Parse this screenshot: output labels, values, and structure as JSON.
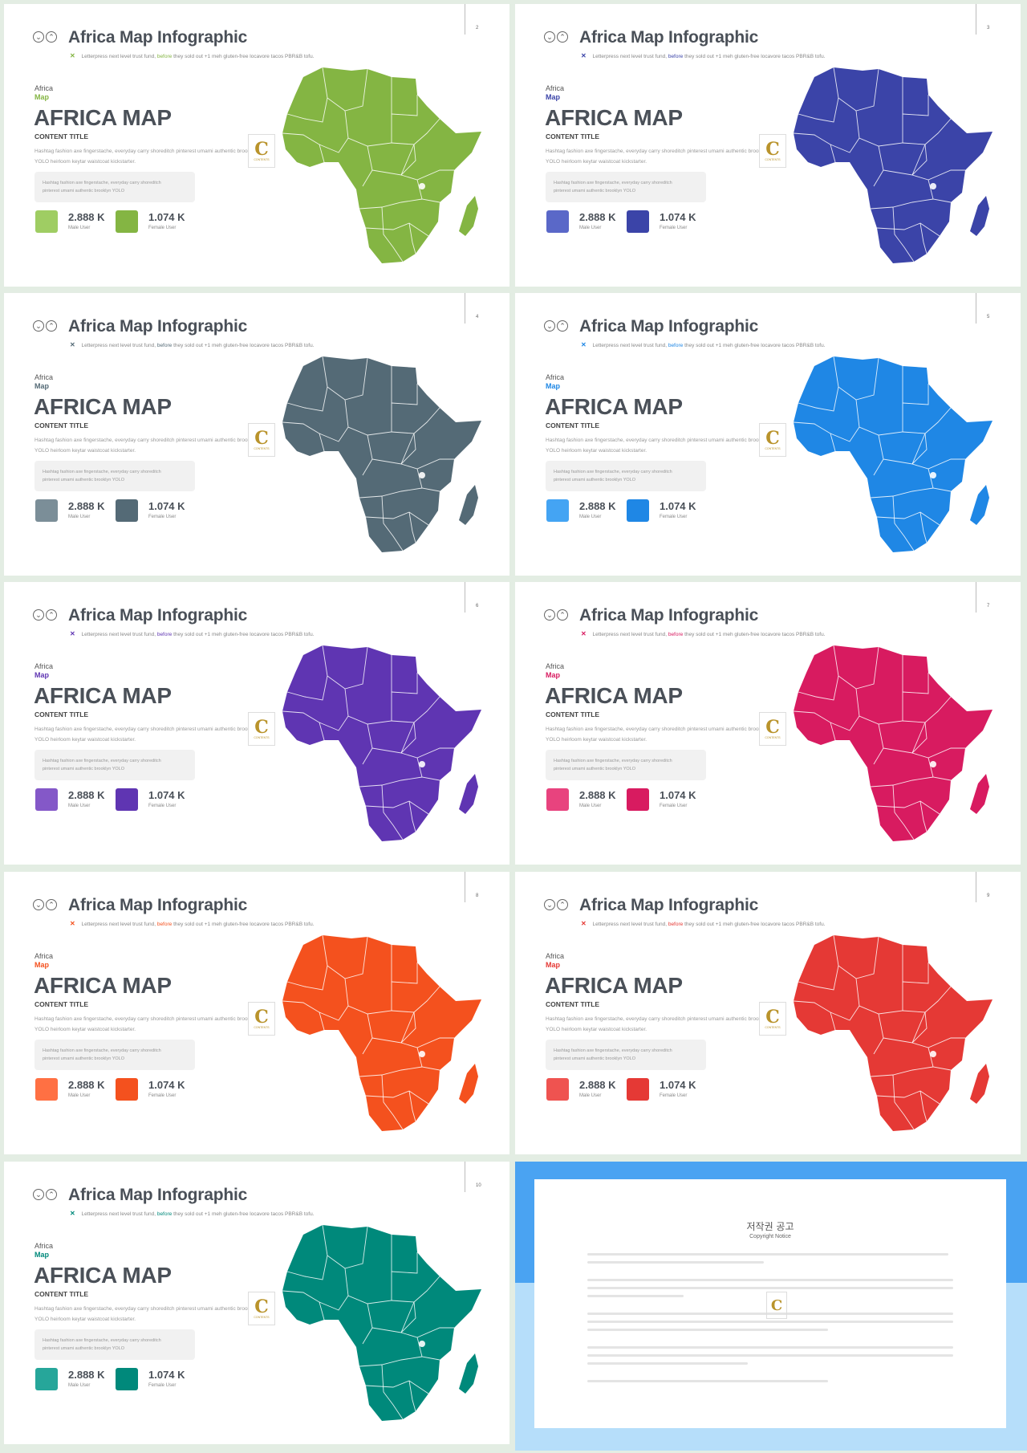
{
  "common": {
    "title": "Africa Map Infographic",
    "subtitle_pre": "Letterpress next level trust fund,",
    "subtitle_mid": "before",
    "subtitle_post": "they sold out +1 meh gluten-free locavore tacos PBR&B tofu.",
    "africa": "Africa",
    "map": "Map",
    "big": "AFRICA MAP",
    "content_title": "CONTENT TITLE",
    "desc": "Hashtag fashion axe fingerstache, everyday carry shoreditch pinterest umami authentic brooklyn YOLO heirloom keytar waistcoat kickstarter.",
    "box_text": "Hashtag fashion axe fingerstache, everyday carry shoreditch pinterest umami authentic brooklyn YOLO",
    "male_value": "2.888 K",
    "male_label": "Male User",
    "female_value": "1.074 K",
    "female_label": "Female User",
    "logo_letter": "C",
    "logo_text": "CONTENTS"
  },
  "slides": [
    {
      "page": "2",
      "color": "#84b543",
      "light": "#9fcd63",
      "accent": "#84b543",
      "x_color": "#84b543"
    },
    {
      "page": "3",
      "color": "#3b44a8",
      "light": "#5a68c8",
      "accent": "#3b44a8",
      "x_color": "#3b44a8"
    },
    {
      "page": "4",
      "color": "#546a76",
      "light": "#7b8e98",
      "accent": "#546a76",
      "x_color": "#546a76"
    },
    {
      "page": "5",
      "color": "#1f87e5",
      "light": "#44a4f3",
      "accent": "#1f87e5",
      "x_color": "#1f87e5"
    },
    {
      "page": "6",
      "color": "#5f35b2",
      "light": "#8458c8",
      "accent": "#5f35b2",
      "x_color": "#5f35b2"
    },
    {
      "page": "7",
      "color": "#d81b60",
      "light": "#e8437e",
      "accent": "#d81b60",
      "x_color": "#d81b60"
    },
    {
      "page": "8",
      "color": "#f4511e",
      "light": "#ff7043",
      "accent": "#f4511e",
      "x_color": "#f4511e"
    },
    {
      "page": "9",
      "color": "#e53935",
      "light": "#ef5350",
      "accent": "#e53935",
      "x_color": "#e53935"
    },
    {
      "page": "10",
      "color": "#00897b",
      "light": "#26a69a",
      "accent": "#00897b",
      "x_color": "#00897b"
    }
  ],
  "notice": {
    "title": "저작권 공고",
    "subtitle": "Copyright Notice"
  }
}
